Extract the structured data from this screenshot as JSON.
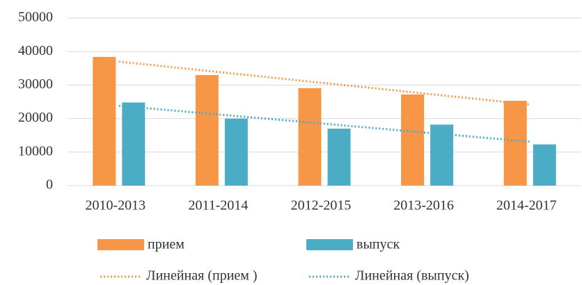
{
  "chart_data": {
    "type": "bar",
    "categories": [
      "2010-2013",
      "2011-2014",
      "2012-2015",
      "2013-2016",
      "2014-2017"
    ],
    "series": [
      {
        "name": "прием",
        "color": "#f79646",
        "values": [
          38400,
          33000,
          29100,
          27200,
          25300
        ],
        "trendline": {
          "type": "linear",
          "name": "Линейная (прием )"
        }
      },
      {
        "name": "выпуск",
        "color": "#4bacc6",
        "values": [
          24800,
          20000,
          17000,
          18200,
          12300
        ],
        "trendline": {
          "type": "linear",
          "name": "Линейная (выпуск)"
        }
      }
    ],
    "ylim": [
      0,
      50000
    ],
    "yticks": [
      0,
      10000,
      20000,
      30000,
      40000,
      50000
    ],
    "grid": true,
    "legend": "bottom"
  }
}
